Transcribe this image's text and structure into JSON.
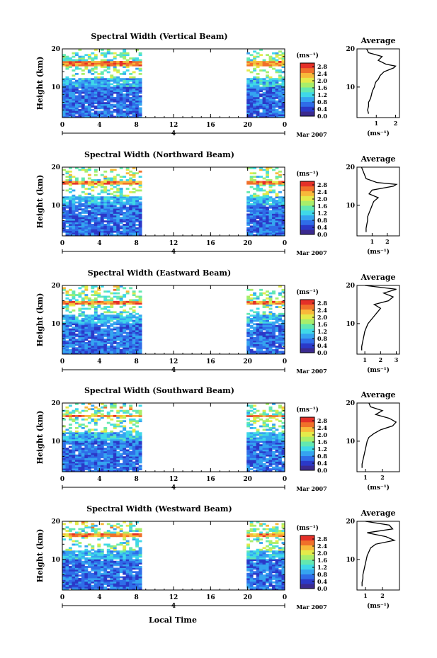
{
  "chart_data": {
    "type": "heatmap",
    "x_axis": {
      "label": "Local Time",
      "range": [
        0,
        24
      ],
      "ticks": [
        "0",
        "4",
        "8",
        "12",
        "16",
        "20",
        "0"
      ],
      "day_label": "4",
      "month_label": "Mar 2007"
    },
    "y_axis": {
      "label": "Height (km)",
      "range": [
        2,
        20
      ],
      "ticks": [
        "10",
        "20"
      ]
    },
    "colorbar": {
      "unit": "(ms⁻¹)",
      "range": [
        0,
        3
      ],
      "ticks": [
        "0.0",
        "0.4",
        "0.8",
        "1.2",
        "1.6",
        "2.0",
        "2.4",
        "2.8"
      ],
      "colors": [
        "#3b2a8f",
        "#2b39c8",
        "#2f6de8",
        "#35a4f0",
        "#3fd8e8",
        "#63e8b0",
        "#a8ee6a",
        "#e4ea4a",
        "#f8b93a",
        "#f0702a",
        "#e43028"
      ]
    },
    "data_gaps": [
      {
        "from": 8.5,
        "to": 19.6
      }
    ],
    "panels": [
      {
        "title": "Spectral Width (Vertical Beam)",
        "avg_title": "Average",
        "avg_xlabel": "(ms⁻¹)",
        "avg_xticks": [
          "1",
          "2"
        ],
        "avg_xrange": [
          0,
          2.2
        ],
        "profile": [
          [
            3,
            0.6
          ],
          [
            4,
            0.55
          ],
          [
            5,
            0.6
          ],
          [
            6,
            0.6
          ],
          [
            7,
            0.7
          ],
          [
            8,
            0.75
          ],
          [
            9,
            0.8
          ],
          [
            10,
            0.9
          ],
          [
            11,
            0.95
          ],
          [
            11.5,
            1.0
          ],
          [
            12,
            1.1
          ],
          [
            13,
            1.2
          ],
          [
            14,
            1.4
          ],
          [
            15,
            1.9
          ],
          [
            15.5,
            2.0
          ],
          [
            16,
            1.5
          ],
          [
            17,
            1.1
          ],
          [
            18,
            1.3
          ],
          [
            19,
            0.6
          ],
          [
            20,
            0.5
          ]
        ],
        "hi_bands": [
          15.5,
          16.8
        ],
        "top_boundary": 19
      },
      {
        "title": "Spectral Width (Northward Beam)",
        "avg_title": "Average",
        "avg_xlabel": "(ms⁻¹)",
        "avg_xticks": [
          "1",
          "2"
        ],
        "avg_xrange": [
          0,
          2.8
        ],
        "profile": [
          [
            3,
            0.6
          ],
          [
            4,
            0.6
          ],
          [
            5,
            0.65
          ],
          [
            6,
            0.7
          ],
          [
            7,
            0.7
          ],
          [
            8,
            0.8
          ],
          [
            9,
            0.9
          ],
          [
            10,
            1.0
          ],
          [
            11,
            1.1
          ],
          [
            12,
            1.4
          ],
          [
            13,
            0.8
          ],
          [
            14,
            1.0
          ],
          [
            15,
            2.4
          ],
          [
            15.5,
            2.6
          ],
          [
            16,
            1.3
          ],
          [
            17,
            0.6
          ],
          [
            18,
            0.5
          ],
          [
            19,
            0.4
          ],
          [
            20,
            0.3
          ]
        ],
        "hi_bands": [
          15.3,
          16.2
        ],
        "top_boundary": 17
      },
      {
        "title": "Spectral Width (Eastward Beam)",
        "avg_title": "Average",
        "avg_xlabel": "(ms⁻¹)",
        "avg_xticks": [
          "1",
          "2",
          "3"
        ],
        "avg_xrange": [
          0.5,
          3.2
        ],
        "profile": [
          [
            3,
            0.8
          ],
          [
            4,
            0.8
          ],
          [
            5,
            0.85
          ],
          [
            6,
            0.9
          ],
          [
            7,
            0.95
          ],
          [
            8,
            1.0
          ],
          [
            9,
            1.1
          ],
          [
            10,
            1.2
          ],
          [
            11,
            1.4
          ],
          [
            12,
            1.6
          ],
          [
            13,
            1.8
          ],
          [
            14,
            2.0
          ],
          [
            15,
            1.6
          ],
          [
            16,
            2.5
          ],
          [
            17,
            2.8
          ],
          [
            18,
            2.2
          ],
          [
            19,
            3.0
          ],
          [
            20,
            1.0
          ]
        ],
        "hi_bands": [
          15.0,
          15.8
        ],
        "top_boundary": 18
      },
      {
        "title": "Spectral Width (Southward Beam)",
        "avg_title": "Average",
        "avg_xlabel": "(ms⁻¹)",
        "avg_xticks": [
          "1",
          "2"
        ],
        "avg_xrange": [
          0.5,
          3.0
        ],
        "profile": [
          [
            3,
            0.8
          ],
          [
            4,
            0.8
          ],
          [
            5,
            0.85
          ],
          [
            6,
            0.9
          ],
          [
            7,
            0.95
          ],
          [
            8,
            1.0
          ],
          [
            9,
            1.05
          ],
          [
            10,
            1.1
          ],
          [
            11,
            1.2
          ],
          [
            12,
            1.5
          ],
          [
            13,
            1.9
          ],
          [
            14,
            2.6
          ],
          [
            15,
            2.8
          ],
          [
            16,
            2.4
          ],
          [
            17,
            1.6
          ],
          [
            18,
            2.0
          ],
          [
            19,
            1.3
          ],
          [
            20,
            1.2
          ]
        ],
        "hi_bands": [
          16.0,
          16.8
        ],
        "top_boundary": 18
      },
      {
        "title": "Spectral Width (Westward Beam)",
        "avg_title": "Average",
        "avg_xlabel": "(ms⁻¹)",
        "avg_xticks": [
          "1",
          "2"
        ],
        "avg_xrange": [
          0.5,
          3.0
        ],
        "profile": [
          [
            3,
            0.8
          ],
          [
            4,
            0.8
          ],
          [
            5,
            0.85
          ],
          [
            6,
            0.85
          ],
          [
            7,
            0.9
          ],
          [
            8,
            0.95
          ],
          [
            9,
            1.0
          ],
          [
            10,
            1.05
          ],
          [
            11,
            1.1
          ],
          [
            12,
            1.2
          ],
          [
            13,
            1.3
          ],
          [
            14,
            1.6
          ],
          [
            15,
            2.7
          ],
          [
            16,
            2.2
          ],
          [
            17,
            1.1
          ],
          [
            18,
            2.6
          ],
          [
            19,
            2.4
          ],
          [
            20,
            1.0
          ]
        ],
        "hi_bands": [
          15.8,
          16.6
        ],
        "top_boundary": 18
      }
    ]
  }
}
